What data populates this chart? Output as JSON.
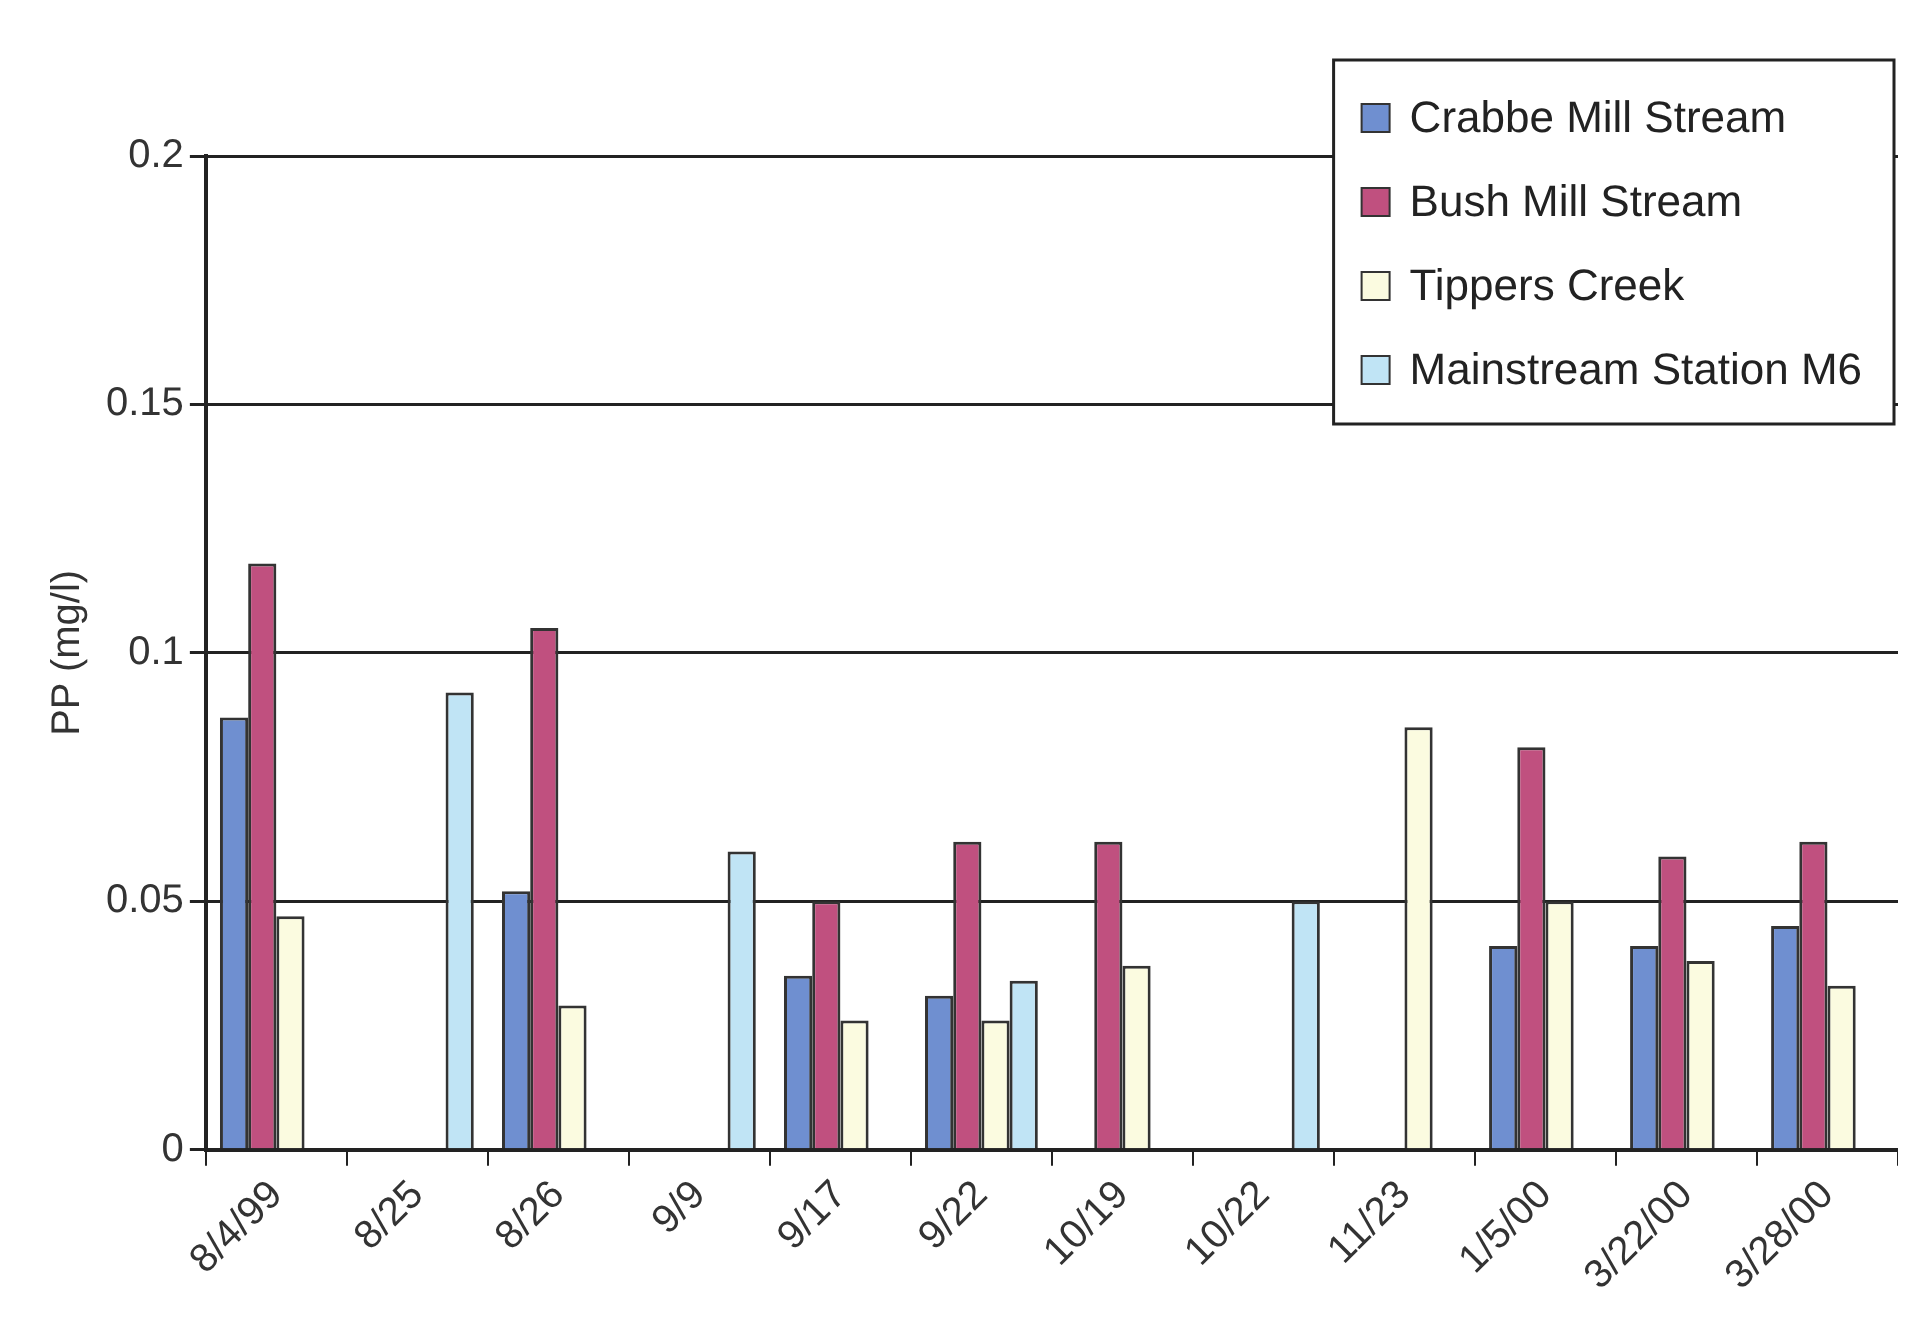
{
  "chart_data": {
    "type": "bar",
    "ylabel": "PP (mg/l)",
    "categories": [
      "8/4/99",
      "8/25",
      "8/26",
      "9/9",
      "9/17",
      "9/22",
      "10/19",
      "10/22",
      "11/23",
      "1/5/00",
      "3/22/00",
      "3/28/00"
    ],
    "series": [
      {
        "name": "Crabbe Mill Stream",
        "color": "#6f8fd0",
        "values": [
          0.087,
          null,
          0.052,
          null,
          0.035,
          0.031,
          null,
          null,
          null,
          0.041,
          0.041,
          0.045
        ]
      },
      {
        "name": "Bush Mill Stream",
        "color": "#c0507f",
        "values": [
          0.118,
          null,
          0.105,
          null,
          0.05,
          0.062,
          0.062,
          null,
          null,
          0.081,
          0.059,
          0.062
        ]
      },
      {
        "name": "Tippers Creek",
        "color": "#fbfbe0",
        "values": [
          0.047,
          null,
          0.029,
          null,
          0.026,
          0.026,
          0.037,
          null,
          0.085,
          0.05,
          0.038,
          0.033
        ]
      },
      {
        "name": "Mainstream Station M6",
        "color": "#c0e4f5",
        "values": [
          null,
          0.092,
          null,
          0.06,
          null,
          0.034,
          null,
          0.05,
          null,
          null,
          null,
          null
        ]
      }
    ],
    "ylim": [
      0,
      0.2
    ],
    "yticks": [
      0,
      0.05,
      0.1,
      0.15,
      0.2
    ],
    "grid": "y",
    "legend": "top right"
  }
}
